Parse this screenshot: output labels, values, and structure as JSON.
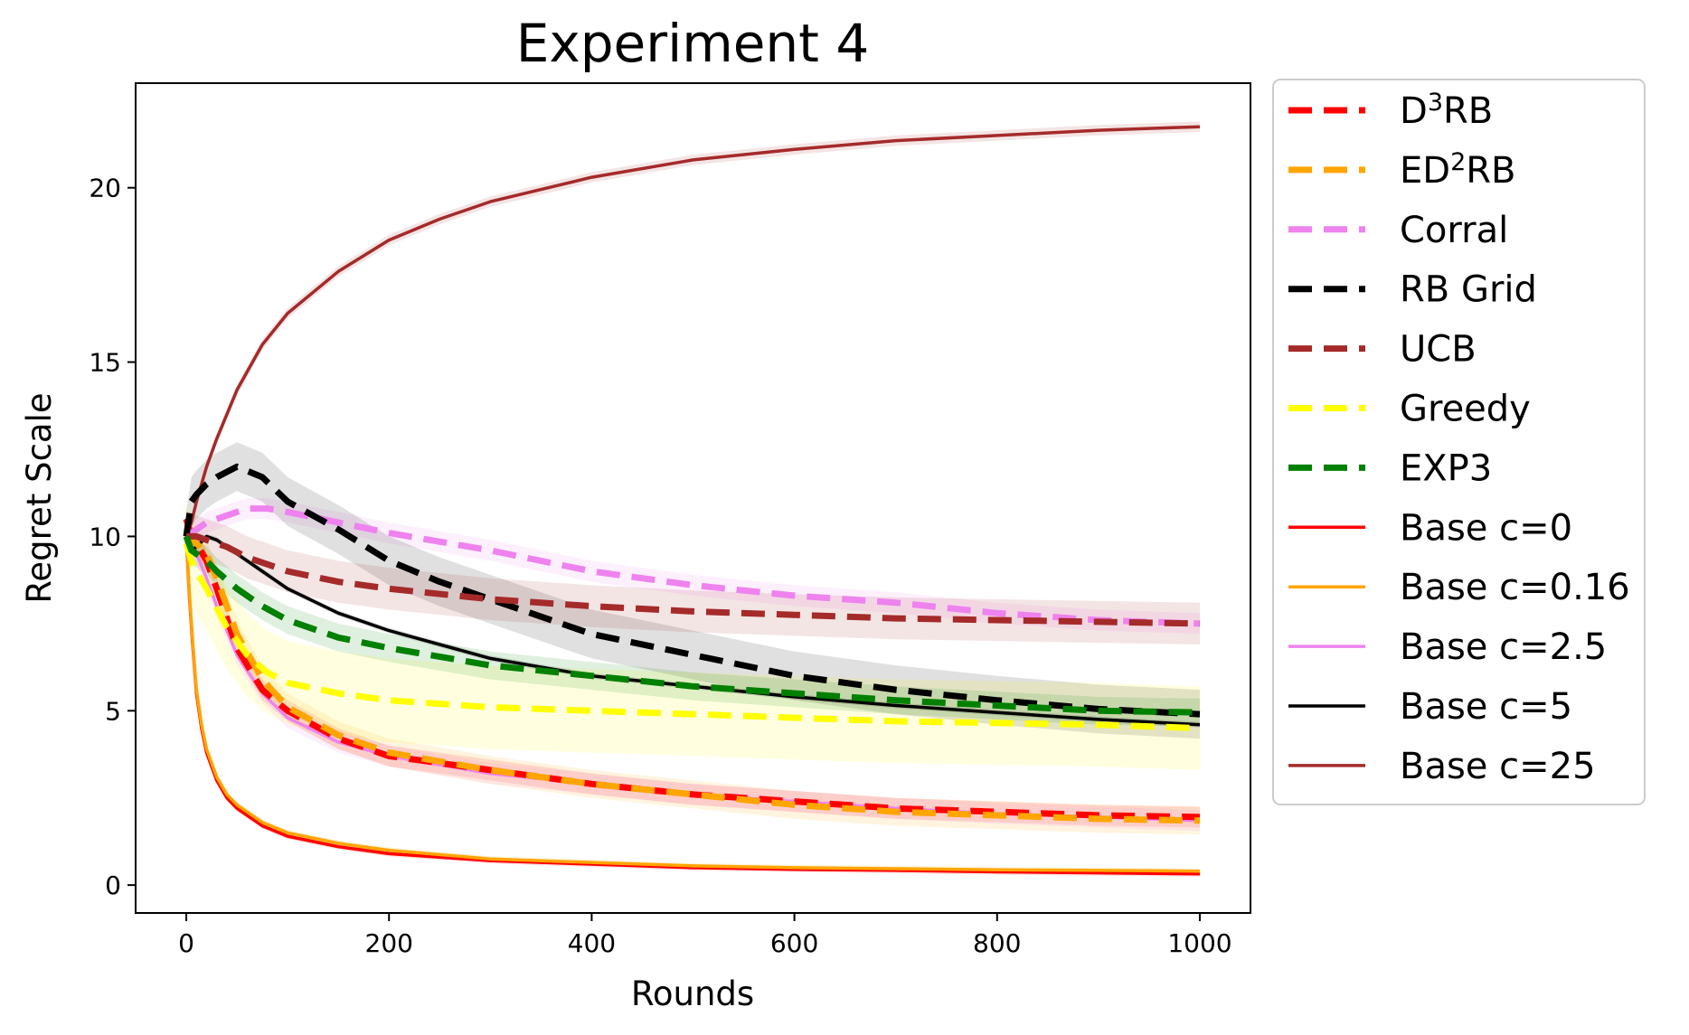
{
  "chart_data": {
    "type": "line",
    "title": "Experiment 4",
    "xlabel": "Rounds",
    "ylabel": "Regret Scale",
    "xlim": [
      -50,
      1050
    ],
    "ylim": [
      -0.8,
      23
    ],
    "xticks": [
      0,
      200,
      400,
      600,
      800,
      1000
    ],
    "yticks": [
      0,
      5,
      10,
      15,
      20
    ],
    "grid": false,
    "legend_position": "outside right",
    "series": [
      {
        "name": "D",
        "sup": "3",
        "suffix": "RB",
        "style": "dashed",
        "color": "#ff0000",
        "band": 0.3,
        "x": [
          0,
          5,
          10,
          20,
          30,
          50,
          75,
          100,
          150,
          200,
          300,
          400,
          500,
          600,
          700,
          800,
          900,
          1000
        ],
        "y": [
          10.5,
          10.0,
          9.8,
          9.3,
          8.5,
          6.8,
          5.6,
          5.0,
          4.2,
          3.7,
          3.3,
          2.9,
          2.6,
          2.4,
          2.2,
          2.1,
          2.0,
          1.95
        ]
      },
      {
        "name": "ED",
        "sup": "2",
        "suffix": "RB",
        "style": "dashed",
        "color": "#ffa500",
        "band": 0.4,
        "x": [
          0,
          5,
          10,
          20,
          30,
          50,
          75,
          100,
          150,
          200,
          300,
          400,
          500,
          600,
          700,
          800,
          900,
          1000
        ],
        "y": [
          10.2,
          9.9,
          9.8,
          9.5,
          8.8,
          7.2,
          5.9,
          5.1,
          4.3,
          3.8,
          3.3,
          2.9,
          2.6,
          2.3,
          2.1,
          2.0,
          1.9,
          1.85
        ]
      },
      {
        "name": "Corral",
        "style": "dashed",
        "color": "#ee82ee",
        "band": 0.3,
        "x": [
          0,
          5,
          10,
          20,
          40,
          60,
          80,
          100,
          150,
          200,
          300,
          400,
          500,
          600,
          700,
          800,
          900,
          1000
        ],
        "y": [
          10.0,
          10.1,
          10.2,
          10.4,
          10.6,
          10.8,
          10.8,
          10.7,
          10.4,
          10.1,
          9.6,
          9.0,
          8.6,
          8.3,
          8.1,
          7.8,
          7.6,
          7.5
        ]
      },
      {
        "name": "RB Grid",
        "style": "dashed",
        "color": "#000000",
        "band": 0.7,
        "x": [
          0,
          5,
          10,
          20,
          30,
          50,
          75,
          100,
          150,
          200,
          250,
          300,
          400,
          500,
          600,
          700,
          800,
          900,
          1000
        ],
        "y": [
          10.0,
          11.0,
          11.2,
          11.5,
          11.7,
          12.0,
          11.7,
          11.0,
          10.2,
          9.3,
          8.7,
          8.2,
          7.2,
          6.6,
          6.0,
          5.6,
          5.3,
          5.05,
          4.9
        ]
      },
      {
        "name": "UCB",
        "style": "dashed",
        "color": "#a52a2a",
        "band": 0.6,
        "x": [
          0,
          5,
          10,
          20,
          40,
          60,
          100,
          150,
          200,
          300,
          400,
          500,
          600,
          700,
          800,
          900,
          1000
        ],
        "y": [
          10.0,
          10.0,
          10.0,
          9.9,
          9.7,
          9.4,
          9.0,
          8.7,
          8.5,
          8.2,
          8.0,
          7.85,
          7.75,
          7.65,
          7.6,
          7.55,
          7.5
        ]
      },
      {
        "name": "Greedy",
        "style": "dashed",
        "color": "#ffff00",
        "band": 1.2,
        "x": [
          0,
          5,
          10,
          20,
          40,
          60,
          80,
          100,
          150,
          200,
          300,
          400,
          500,
          600,
          700,
          800,
          900,
          1000
        ],
        "y": [
          9.8,
          9.3,
          9.0,
          8.5,
          7.4,
          6.6,
          6.1,
          5.8,
          5.5,
          5.3,
          5.1,
          5.0,
          4.9,
          4.8,
          4.7,
          4.65,
          4.6,
          4.5
        ]
      },
      {
        "name": "EXP3",
        "style": "dashed",
        "color": "#008000",
        "band": 0.4,
        "x": [
          0,
          5,
          10,
          20,
          30,
          50,
          75,
          100,
          150,
          200,
          300,
          400,
          500,
          600,
          700,
          800,
          900,
          1000
        ],
        "y": [
          10.0,
          9.6,
          9.5,
          9.3,
          9.0,
          8.5,
          8.0,
          7.6,
          7.1,
          6.8,
          6.3,
          6.0,
          5.7,
          5.5,
          5.3,
          5.15,
          5.0,
          4.95
        ]
      },
      {
        "name": "Base c=0",
        "style": "solid",
        "color": "#ff0000",
        "band": 0.08,
        "x": [
          0,
          3,
          6,
          10,
          15,
          20,
          30,
          40,
          50,
          75,
          100,
          150,
          200,
          300,
          400,
          500,
          600,
          700,
          800,
          900,
          1000
        ],
        "y": [
          10.0,
          8.3,
          7.0,
          5.5,
          4.5,
          3.8,
          3.0,
          2.5,
          2.2,
          1.7,
          1.4,
          1.1,
          0.9,
          0.7,
          0.6,
          0.5,
          0.45,
          0.42,
          0.38,
          0.35,
          0.32
        ]
      },
      {
        "name": "Base c=0.16",
        "style": "solid",
        "color": "#ffa500",
        "band": 0.08,
        "x": [
          0,
          3,
          6,
          10,
          15,
          20,
          30,
          40,
          50,
          75,
          100,
          150,
          200,
          300,
          400,
          500,
          600,
          700,
          800,
          900,
          1000
        ],
        "y": [
          10.1,
          8.4,
          7.1,
          5.6,
          4.6,
          3.9,
          3.1,
          2.6,
          2.3,
          1.8,
          1.5,
          1.2,
          1.0,
          0.75,
          0.65,
          0.55,
          0.5,
          0.47,
          0.44,
          0.42,
          0.4
        ]
      },
      {
        "name": "Base c=2.5",
        "style": "solid",
        "color": "#ee82ee",
        "band": 0.3,
        "x": [
          0,
          5,
          10,
          20,
          30,
          50,
          75,
          100,
          150,
          200,
          300,
          400,
          500,
          600,
          700,
          800,
          900,
          1000
        ],
        "y": [
          10.0,
          9.7,
          9.5,
          8.8,
          8.0,
          6.6,
          5.5,
          4.8,
          4.1,
          3.7,
          3.2,
          2.9,
          2.6,
          2.4,
          2.2,
          2.05,
          1.95,
          1.85
        ]
      },
      {
        "name": "Base c=5",
        "style": "solid",
        "color": "#000000",
        "band": 0.08,
        "x": [
          0,
          5,
          10,
          20,
          30,
          50,
          75,
          100,
          150,
          200,
          300,
          400,
          500,
          600,
          700,
          800,
          900,
          1000
        ],
        "y": [
          10.5,
          9.6,
          9.7,
          10.0,
          9.9,
          9.5,
          9.0,
          8.5,
          7.8,
          7.3,
          6.5,
          6.0,
          5.7,
          5.4,
          5.15,
          4.95,
          4.75,
          4.6
        ]
      },
      {
        "name": "Base c=25",
        "style": "solid",
        "color": "#a52a2a",
        "band": 0.15,
        "x": [
          0,
          5,
          10,
          20,
          30,
          50,
          75,
          100,
          150,
          200,
          250,
          300,
          400,
          500,
          600,
          700,
          800,
          900,
          1000
        ],
        "y": [
          10.0,
          10.4,
          11.0,
          12.0,
          12.8,
          14.2,
          15.5,
          16.4,
          17.6,
          18.5,
          19.1,
          19.6,
          20.3,
          20.8,
          21.1,
          21.35,
          21.5,
          21.65,
          21.75
        ]
      }
    ]
  }
}
